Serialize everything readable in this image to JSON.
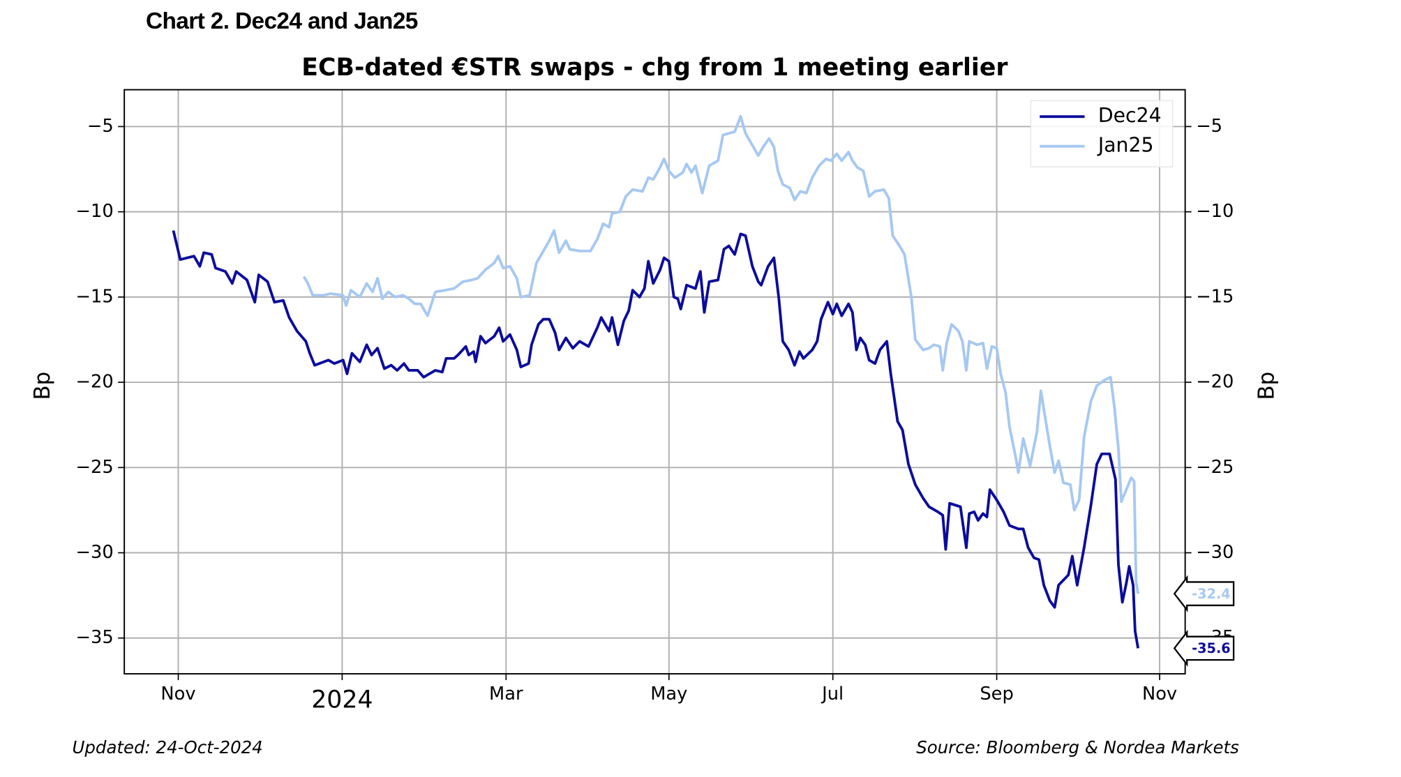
{
  "header": "Chart 2. Dec24 and Jan25",
  "chart_data": {
    "type": "line",
    "title": "ECB-dated €STR swaps - chg from 1 meeting earlier",
    "ylabel": "Bp",
    "y2label": "Bp",
    "xlim": [
      2023.778,
      2024.859
    ],
    "xticks": [
      {
        "value": 2023.833,
        "label": "Nov"
      },
      2024,
      {
        "value": 2024.167,
        "label": "Mar"
      },
      {
        "value": 2024.333,
        "label": "May"
      },
      {
        "value": 2024.5,
        "label": "Jul"
      },
      {
        "value": 2024.667,
        "label": "Sep"
      },
      {
        "value": 2024.833,
        "label": "Nov"
      }
    ],
    "ylim": [
      -37.1,
      -2.84
    ],
    "yticks": [
      {
        "value": -5,
        "label": "−5"
      },
      {
        "value": -10,
        "label": "−10"
      },
      {
        "value": -15,
        "label": "−15"
      },
      {
        "value": -20,
        "label": "−20"
      },
      {
        "value": -25,
        "label": "−25"
      },
      {
        "value": -30,
        "label": "−30"
      },
      {
        "value": -35,
        "label": "−35"
      }
    ],
    "grid": true,
    "legend": "upper right",
    "series": [
      {
        "name": "Dec24",
        "color": "#0c0c9c",
        "x": [
          2023.828,
          2023.835,
          2023.849,
          2023.855,
          2023.859,
          2023.867,
          2023.871,
          2023.881,
          2023.888,
          2023.892,
          2023.903,
          2023.911,
          2023.915,
          2023.924,
          2023.931,
          2023.94,
          2023.946,
          2023.954,
          2023.963,
          2023.967,
          2023.972,
          2023.986,
          2023.992,
          2024.001,
          2024.005,
          2024.01,
          2024.018,
          2024.025,
          2024.03,
          2024.036,
          2024.043,
          2024.05,
          2024.056,
          2024.063,
          2024.068,
          2024.077,
          2024.083,
          2024.095,
          2024.102,
          2024.106,
          2024.114,
          2024.118,
          2024.126,
          2024.129,
          2024.134,
          2024.136,
          2024.141,
          2024.146,
          2024.155,
          2024.16,
          2024.164,
          2024.171,
          2024.178,
          2024.182,
          2024.19,
          2024.193,
          2024.2,
          2024.205,
          2024.211,
          2024.217,
          2024.221,
          2024.228,
          2024.235,
          2024.242,
          2024.251,
          2024.26,
          2024.264,
          2024.272,
          2024.275,
          2024.281,
          2024.287,
          2024.292,
          2024.296,
          2024.303,
          2024.308,
          2024.312,
          2024.317,
          2024.324,
          2024.328,
          2024.333,
          2024.338,
          2024.342,
          2024.345,
          2024.351,
          2024.36,
          2024.365,
          2024.369,
          2024.374,
          2024.383,
          2024.389,
          2024.394,
          2024.4,
          2024.406,
          2024.411,
          2024.418,
          2024.424,
          2024.427,
          2024.434,
          2024.44,
          2024.445,
          2024.449,
          2024.455,
          2024.461,
          2024.466,
          2024.47,
          2024.479,
          2024.484,
          2024.488,
          2024.495,
          2024.5,
          2024.504,
          2024.509,
          2024.516,
          2024.52,
          2024.524,
          2024.528,
          2024.533,
          2024.537,
          2024.543,
          2024.548,
          2024.555,
          2024.559,
          2024.566,
          2024.571,
          2024.577,
          2024.584,
          2024.592,
          2024.598,
          2024.607,
          2024.612,
          2024.615,
          2024.619,
          2024.63,
          2024.636,
          2024.639,
          2024.644,
          2024.648,
          2024.653,
          2024.657,
          2024.66,
          2024.667,
          2024.674,
          2024.68,
          2024.689,
          2024.694,
          2024.699,
          2024.705,
          2024.71,
          2024.715,
          2024.721,
          2024.726,
          2024.73,
          2024.735,
          2024.74,
          2024.744,
          2024.749,
          2024.756,
          2024.763,
          2024.769,
          2024.774,
          2024.782,
          2024.788,
          2024.791,
          2024.795,
          2024.799,
          2024.802,
          2024.806,
          2024.808,
          2024.811
        ],
        "values": [
          -11.1,
          -12.8,
          -12.6,
          -13.2,
          -12.4,
          -12.5,
          -13.3,
          -13.5,
          -14.2,
          -13.5,
          -14.0,
          -15.3,
          -13.7,
          -14.1,
          -15.3,
          -15.2,
          -16.2,
          -17.0,
          -17.6,
          -18.3,
          -19.0,
          -18.7,
          -18.9,
          -18.7,
          -19.5,
          -18.3,
          -18.8,
          -17.8,
          -18.4,
          -18.0,
          -19.2,
          -19.0,
          -19.3,
          -18.9,
          -19.3,
          -19.3,
          -19.7,
          -19.3,
          -19.4,
          -18.6,
          -18.6,
          -18.4,
          -17.9,
          -18.4,
          -18.2,
          -18.8,
          -17.3,
          -17.7,
          -17.3,
          -16.8,
          -17.6,
          -17.2,
          -18.1,
          -19.1,
          -18.9,
          -17.8,
          -16.6,
          -16.3,
          -16.3,
          -17.1,
          -18.1,
          -17.4,
          -18.0,
          -17.6,
          -17.9,
          -16.8,
          -16.2,
          -17.0,
          -16.2,
          -17.8,
          -16.4,
          -15.8,
          -14.6,
          -15.0,
          -14.5,
          -12.9,
          -14.2,
          -13.4,
          -12.7,
          -12.9,
          -15.0,
          -15.1,
          -15.7,
          -14.3,
          -14.5,
          -13.5,
          -15.9,
          -14.1,
          -14.0,
          -12.2,
          -12.0,
          -12.5,
          -11.3,
          -11.4,
          -13.2,
          -14.1,
          -14.3,
          -13.2,
          -12.7,
          -15.1,
          -17.6,
          -18.1,
          -19.0,
          -18.2,
          -18.6,
          -18.1,
          -17.6,
          -16.3,
          -15.3,
          -16.0,
          -15.4,
          -16.1,
          -15.4,
          -15.9,
          -18.1,
          -17.4,
          -17.8,
          -18.7,
          -18.9,
          -18.1,
          -17.6,
          -19.5,
          -22.3,
          -22.8,
          -24.8,
          -26.0,
          -26.8,
          -27.3,
          -27.6,
          -27.8,
          -29.8,
          -27.1,
          -27.3,
          -29.7,
          -27.7,
          -27.6,
          -28.1,
          -27.7,
          -27.9,
          -26.3,
          -26.9,
          -27.6,
          -28.4,
          -28.6,
          -28.6,
          -29.7,
          -30.3,
          -30.4,
          -31.9,
          -32.8,
          -33.2,
          -31.9,
          -31.6,
          -31.3,
          -30.2,
          -31.9,
          -29.7,
          -27.2,
          -24.8,
          -24.2,
          -24.2,
          -25.7,
          -30.7,
          -32.9,
          -31.8,
          -30.8,
          -31.9,
          -34.6,
          -35.6
        ]
      },
      {
        "name": "Jan25",
        "color": "#a6c8f2",
        "x": [
          2023.961,
          2023.965,
          2023.97,
          2023.981,
          2023.988,
          2024.001,
          2024.004,
          2024.009,
          2024.018,
          2024.025,
          2024.031,
          2024.036,
          2024.041,
          2024.047,
          2024.054,
          2024.062,
          2024.068,
          2024.074,
          2024.08,
          2024.087,
          2024.095,
          2024.105,
          2024.114,
          2024.123,
          2024.132,
          2024.138,
          2024.146,
          2024.155,
          2024.159,
          2024.164,
          2024.171,
          2024.178,
          2024.182,
          2024.191,
          2024.198,
          2024.205,
          2024.211,
          2024.216,
          2024.221,
          2024.228,
          2024.232,
          2024.242,
          2024.253,
          2024.26,
          2024.266,
          2024.272,
          2024.275,
          2024.283,
          2024.289,
          2024.296,
          2024.306,
          2024.312,
          2024.317,
          2024.323,
          2024.328,
          2024.333,
          2024.339,
          2024.347,
          2024.351,
          2024.356,
          2024.36,
          2024.367,
          2024.374,
          2024.383,
          2024.388,
          2024.394,
          2024.4,
          2024.406,
          2024.411,
          2024.418,
          2024.424,
          2024.429,
          2024.435,
          2024.44,
          2024.444,
          2024.449,
          2024.456,
          2024.461,
          2024.467,
          2024.473,
          2024.479,
          2024.486,
          2024.493,
          2024.498,
          2024.504,
          2024.509,
          2024.516,
          2024.52,
          2024.525,
          2024.531,
          2024.537,
          2024.543,
          2024.552,
          2024.557,
          2024.561,
          2024.568,
          2024.573,
          2024.58,
          2024.584,
          2024.592,
          2024.598,
          2024.603,
          2024.609,
          2024.612,
          2024.616,
          2024.621,
          2024.628,
          2024.632,
          2024.636,
          2024.639,
          2024.647,
          2024.653,
          2024.657,
          2024.662,
          2024.667,
          2024.671,
          2024.676,
          2024.68,
          2024.687,
          2024.689,
          2024.694,
          2024.701,
          2024.708,
          2024.712,
          2024.717,
          2024.721,
          2024.726,
          2024.73,
          2024.735,
          2024.742,
          2024.746,
          2024.751,
          2024.756,
          2024.763,
          2024.769,
          2024.776,
          2024.783,
          2024.787,
          2024.791,
          2024.794,
          2024.799,
          2024.804,
          2024.807,
          2024.809,
          2024.811
        ],
        "values": [
          -13.8,
          -14.2,
          -14.9,
          -14.9,
          -14.8,
          -14.9,
          -15.5,
          -14.6,
          -15.0,
          -14.2,
          -14.7,
          -13.9,
          -15.1,
          -14.7,
          -15.0,
          -14.9,
          -15.1,
          -15.4,
          -15.4,
          -16.1,
          -14.7,
          -14.6,
          -14.5,
          -14.1,
          -14.0,
          -13.9,
          -13.4,
          -13.0,
          -12.6,
          -13.3,
          -13.2,
          -13.9,
          -15.0,
          -14.9,
          -13.0,
          -12.3,
          -11.7,
          -11.1,
          -12.4,
          -11.7,
          -12.2,
          -12.3,
          -12.3,
          -11.6,
          -10.7,
          -10.9,
          -10.1,
          -10.0,
          -9.1,
          -8.7,
          -8.8,
          -8.0,
          -8.1,
          -7.5,
          -6.9,
          -7.6,
          -8.0,
          -7.7,
          -7.2,
          -7.7,
          -7.3,
          -8.9,
          -7.3,
          -7.0,
          -5.5,
          -5.4,
          -5.3,
          -4.4,
          -5.4,
          -6.1,
          -6.7,
          -6.2,
          -5.7,
          -6.2,
          -7.6,
          -8.4,
          -8.6,
          -9.3,
          -8.8,
          -8.9,
          -8.0,
          -7.3,
          -6.9,
          -7.0,
          -6.6,
          -7.0,
          -6.5,
          -7.0,
          -7.4,
          -7.6,
          -9.1,
          -8.8,
          -8.7,
          -9.2,
          -11.4,
          -12.0,
          -12.5,
          -15.0,
          -17.5,
          -18.1,
          -18.0,
          -17.8,
          -17.9,
          -19.3,
          -17.7,
          -16.6,
          -17.0,
          -17.6,
          -19.3,
          -17.6,
          -17.8,
          -17.7,
          -19.2,
          -17.9,
          -18.0,
          -19.5,
          -20.6,
          -22.6,
          -24.6,
          -25.3,
          -23.3,
          -24.9,
          -22.9,
          -20.5,
          -22.3,
          -23.7,
          -25.3,
          -24.6,
          -25.9,
          -26.0,
          -27.5,
          -26.9,
          -23.2,
          -21.1,
          -20.2,
          -19.9,
          -19.7,
          -21.5,
          -23.9,
          -27.0,
          -26.3,
          -25.6,
          -25.8,
          -31.7,
          -32.4
        ]
      }
    ],
    "annotations": [
      {
        "value": -32.4,
        "color": "#a6c8f2"
      },
      {
        "value": -35.6,
        "color": "#0c0c9c"
      }
    ]
  },
  "footer": {
    "left": "Updated: 24-Oct-2024",
    "right": "Source: Bloomberg & Nordea Markets"
  }
}
